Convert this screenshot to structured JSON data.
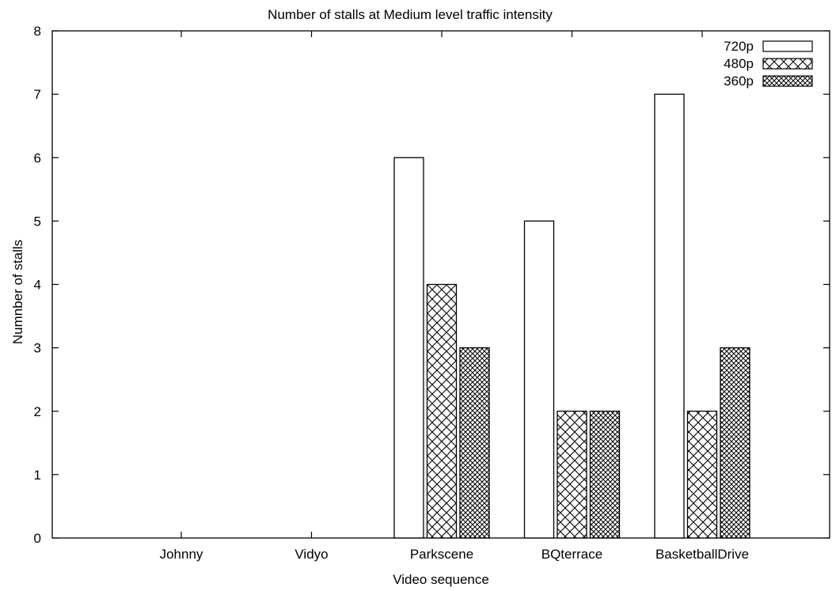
{
  "chart_data": {
    "type": "bar",
    "title": "Number of stalls at Medium level traffic intensity",
    "xlabel": "Video sequence",
    "ylabel": "Numnber of stalls",
    "categories": [
      "Johnny",
      "Vidyo",
      "Parkscene",
      "BQterrace",
      "BasketballDrive"
    ],
    "series": [
      {
        "name": "720p",
        "values": [
          0,
          0,
          6,
          5,
          7
        ],
        "pattern": "none"
      },
      {
        "name": "480p",
        "values": [
          0,
          0,
          4,
          2,
          2
        ],
        "pattern": "coarse-crosshatch"
      },
      {
        "name": "360p",
        "values": [
          0,
          0,
          3,
          2,
          3
        ],
        "pattern": "fine-crosshatch"
      }
    ],
    "ylim": [
      0,
      8
    ],
    "yticks": [
      0,
      1,
      2,
      3,
      4,
      5,
      6,
      7,
      8
    ],
    "grid": false,
    "legend_position": "top-right",
    "colors": {
      "stroke": "#000000",
      "fill": "#ffffff"
    }
  }
}
